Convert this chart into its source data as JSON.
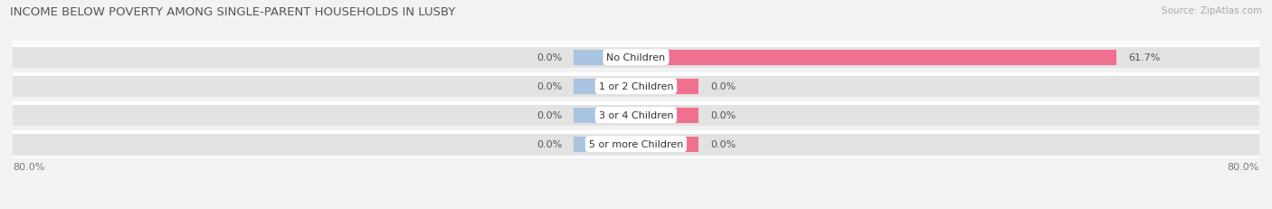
{
  "title": "INCOME BELOW POVERTY AMONG SINGLE-PARENT HOUSEHOLDS IN LUSBY",
  "source": "Source: ZipAtlas.com",
  "categories": [
    "No Children",
    "1 or 2 Children",
    "3 or 4 Children",
    "5 or more Children"
  ],
  "single_father": [
    0.0,
    0.0,
    0.0,
    0.0
  ],
  "single_mother": [
    61.7,
    0.0,
    0.0,
    0.0
  ],
  "father_color": "#a8c4e0",
  "mother_color": "#f07090",
  "bg_color": "#f2f2f2",
  "bar_bg_color": "#e2e2e2",
  "bar_bg_light": "#ebebeb",
  "axis_min": -80.0,
  "axis_max": 80.0,
  "left_label": "80.0%",
  "right_label": "80.0%",
  "title_fontsize": 9.5,
  "source_fontsize": 7.5,
  "value_fontsize": 8,
  "category_fontsize": 8,
  "legend_fontsize": 8.5,
  "default_bar_extent": 8.0
}
